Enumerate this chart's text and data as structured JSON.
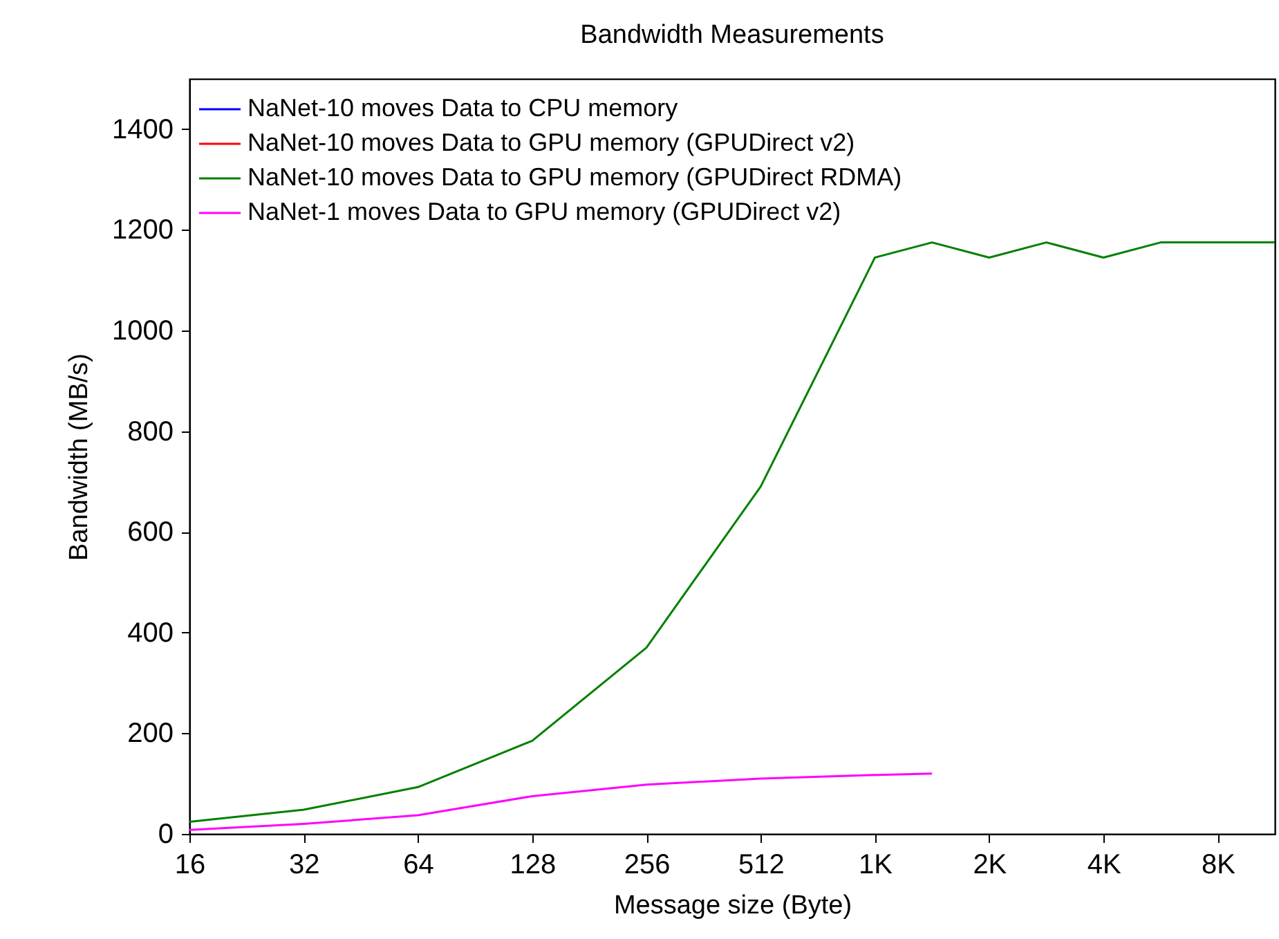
{
  "chart_data": {
    "type": "line",
    "title": "Bandwidth Measurements",
    "xlabel": "Message size (Byte)",
    "ylabel": "Bandwidth (MB/s)",
    "x": [
      16,
      32,
      64,
      128,
      256,
      512,
      1024,
      1448,
      2048,
      2896,
      4096,
      5793,
      8192,
      11585
    ],
    "series": [
      {
        "name": "NaNet-10 moves Data to CPU memory",
        "color": "#0000ff",
        "values": [
          null,
          null,
          null,
          null,
          null,
          null,
          null,
          null,
          null,
          null,
          null,
          null,
          null,
          null
        ]
      },
      {
        "name": "NaNet-10 moves Data to GPU memory (GPUDirect v2)",
        "color": "#ff0000",
        "values": [
          null,
          null,
          null,
          null,
          null,
          null,
          null,
          null,
          null,
          null,
          null,
          null,
          null,
          null
        ]
      },
      {
        "name": "NaNet-10 moves Data to GPU memory (GPUDirect RDMA)",
        "color": "#008000",
        "values": [
          24,
          48,
          93,
          185,
          370,
          690,
          1145,
          1175,
          1145,
          1175,
          1145,
          1175,
          1175,
          1175
        ]
      },
      {
        "name": "NaNet-1 moves Data to GPU memory (GPUDirect v2)",
        "color": "#ff00ff",
        "values": [
          8,
          20,
          37,
          75,
          98,
          110,
          117,
          120,
          null,
          null,
          null,
          null,
          null,
          null
        ]
      }
    ],
    "log": "x",
    "xlim": [
      16,
      11585
    ],
    "ylim": [
      0,
      1500
    ],
    "xticks": [
      16,
      32,
      64,
      128,
      256,
      512,
      {
        "value": 1024,
        "label": "1K"
      },
      {
        "value": 2048,
        "label": "2K"
      },
      {
        "value": 4096,
        "label": "4K"
      },
      {
        "value": 8192,
        "label": "8K"
      }
    ],
    "yticks": [
      0,
      200,
      400,
      600,
      800,
      1000,
      1200,
      1400
    ],
    "grid": false,
    "legend": "top left",
    "marker": "none",
    "line_style": "solid"
  }
}
